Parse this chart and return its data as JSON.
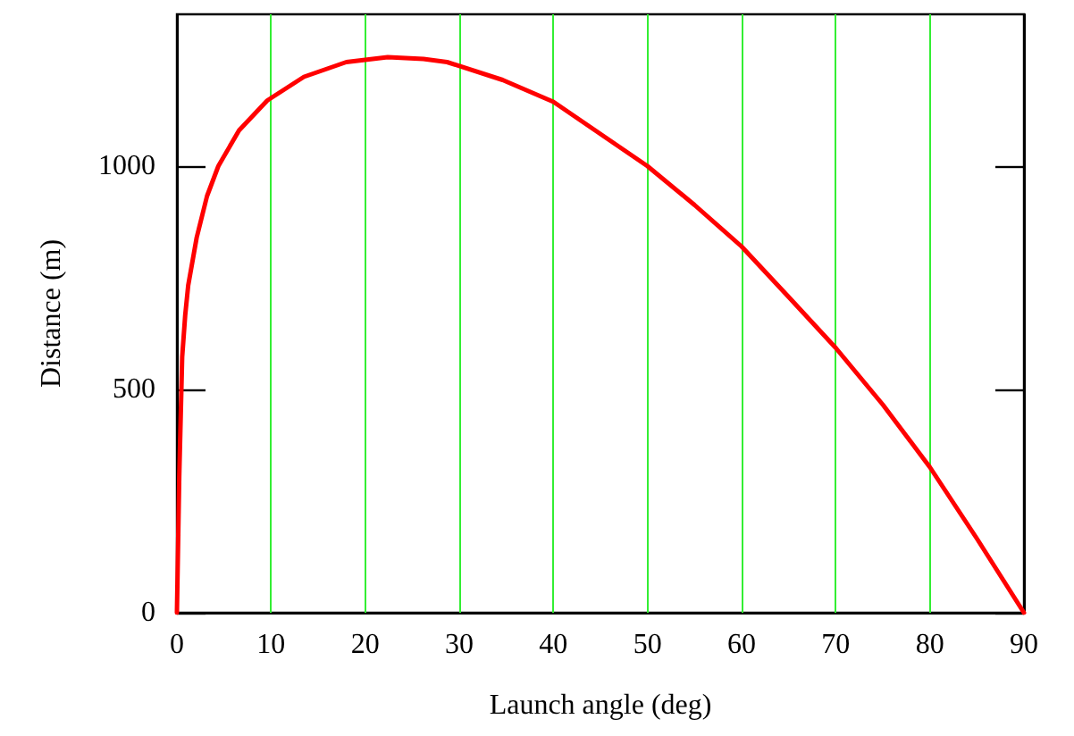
{
  "chart_data": {
    "type": "line",
    "xlabel": "Launch angle (deg)",
    "ylabel": "Distance (m)",
    "x": [
      0,
      0.25,
      0.56,
      0.88,
      1.2,
      2.1,
      3.2,
      4.4,
      6.6,
      9.6,
      13.5,
      18,
      22.4,
      26.2,
      28.7,
      34.6,
      40,
      50,
      55,
      60,
      65,
      70,
      75,
      80,
      85,
      90
    ],
    "series": [
      {
        "color": "#ff0000",
        "values": [
          0,
          306,
          573,
          666,
          733,
          840,
          933,
          1000,
          1080,
          1147,
          1200,
          1233,
          1244,
          1240,
          1233,
          1193,
          1144,
          1000,
          913,
          820,
          707,
          593,
          466,
          326,
          166,
          0
        ]
      }
    ],
    "xlim": [
      0,
      90
    ],
    "xticks": [
      0,
      10,
      20,
      30,
      40,
      50,
      60,
      70,
      80,
      90
    ],
    "ylim": [
      0,
      1340
    ],
    "yticks": [
      0,
      500,
      1000
    ],
    "grid": "x",
    "marker": "none",
    "line_style": "solid"
  }
}
